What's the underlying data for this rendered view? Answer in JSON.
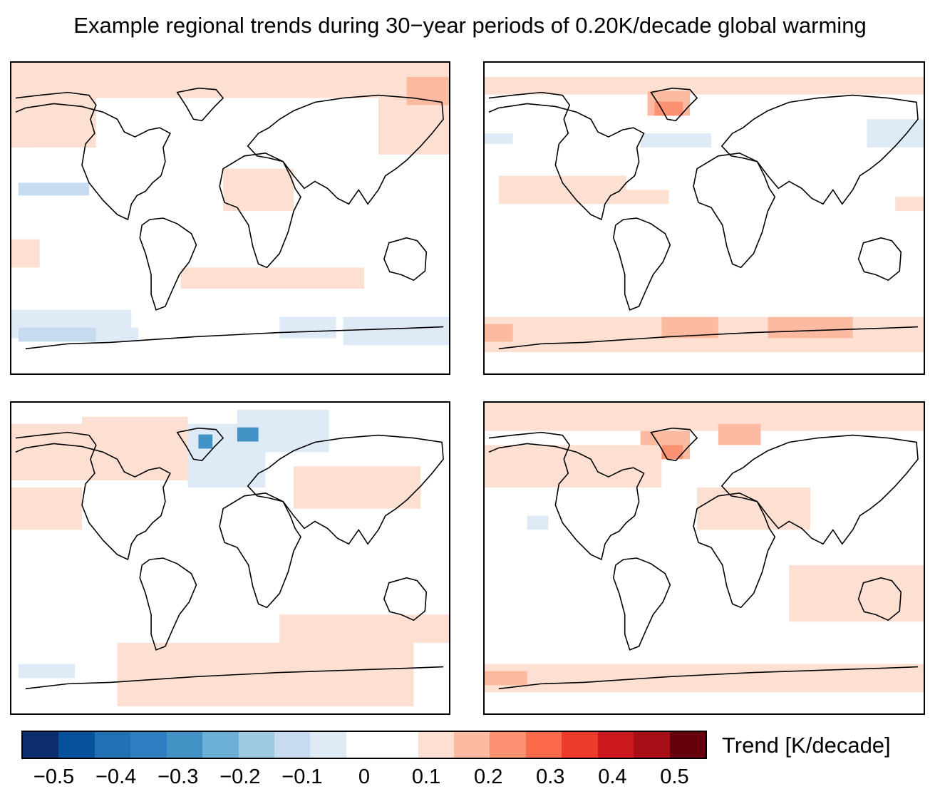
{
  "title": "Example regional trends during 30−year periods of 0.20K/decade global warming",
  "colorbar": {
    "label": "Trend [K/decade]",
    "colors": [
      "#0b2d6b",
      "#08519c",
      "#2171b5",
      "#2d7dc0",
      "#4292c6",
      "#6baed6",
      "#9ecae1",
      "#c6dbef",
      "#deebf7",
      "#ffffff",
      "#ffffff",
      "#fee0d2",
      "#fcbba1",
      "#fc9272",
      "#fb6a4a",
      "#ef3b2c",
      "#cb181d",
      "#a50f15",
      "#67000d"
    ],
    "ticks": [
      {
        "label": "−0.5",
        "value": -0.5
      },
      {
        "label": "−0.4",
        "value": -0.4
      },
      {
        "label": "−0.3",
        "value": -0.3
      },
      {
        "label": "−0.2",
        "value": -0.2
      },
      {
        "label": "−0.1",
        "value": -0.1
      },
      {
        "label": "0",
        "value": 0
      },
      {
        "label": "0.1",
        "value": 0.1
      },
      {
        "label": "0.2",
        "value": 0.2
      },
      {
        "label": "0.3",
        "value": 0.3
      },
      {
        "label": "0.4",
        "value": 0.4
      },
      {
        "label": "0.5",
        "value": 0.5
      }
    ],
    "range": [
      -0.55,
      0.55
    ]
  },
  "map_colors": {
    "light_warm": "#fee0d2",
    "warm": "#fcbba1",
    "strong_warm": "#fc9272",
    "light_cool": "#deebf7",
    "cool": "#c6dbef",
    "strong_cool": "#4292c6",
    "coastline": "#000000"
  },
  "panels": [
    {
      "id": "p1",
      "name": "map-panel-top-left"
    },
    {
      "id": "p2",
      "name": "map-panel-top-right"
    },
    {
      "id": "p3",
      "name": "map-panel-bottom-left"
    },
    {
      "id": "p4",
      "name": "map-panel-bottom-right"
    }
  ]
}
